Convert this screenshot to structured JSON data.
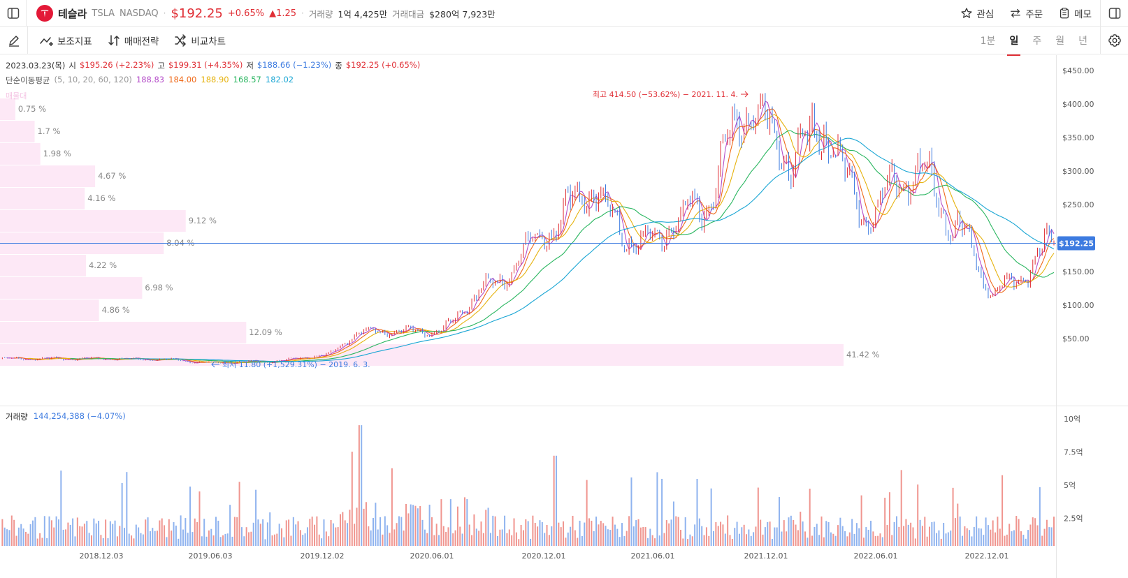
{
  "header": {
    "name": "테슬라",
    "ticker": "TSLA",
    "exchange": "NASDAQ",
    "price": "$192.25",
    "change_pct": "+0.65%",
    "change_abs": "▲1.25",
    "volume_label": "거래량",
    "volume_value": "1억 4,425만",
    "turnover_label": "거래대금",
    "turnover_value": "$280억 7,923만",
    "actions": {
      "watch": "관심",
      "order": "주문",
      "memo": "메모"
    }
  },
  "toolbar": {
    "indicators": "보조지표",
    "strategy": "매매전략",
    "compare": "비교차트",
    "periods": [
      "1분",
      "일",
      "주",
      "월",
      "년"
    ],
    "active_period": "일"
  },
  "legend": {
    "date": "2023.03.23(목)",
    "open_label": "시",
    "open": "$195.26 (+2.23%)",
    "high_label": "고",
    "high": "$199.31 (+4.35%)",
    "low_label": "저",
    "low": "$188.66 (−1.23%)",
    "close_label": "종",
    "close": "$192.25 (+0.65%)",
    "ma_label": "단순이동평균",
    "ma_params": "(5, 10, 20, 60, 120)",
    "ma_values": [
      "188.83",
      "184.00",
      "188.90",
      "168.57",
      "182.02"
    ]
  },
  "volume_legend": {
    "label": "거래량",
    "value": "144,254,388 (−4.07%)"
  },
  "colors": {
    "up": "#e02e35",
    "down": "#3d7be0",
    "ma5": "#b54ec9",
    "ma10": "#ef6a1a",
    "ma20": "#e6b310",
    "ma60": "#2ab660",
    "ma120": "#1aa6d4",
    "profile": "#fde8f6",
    "price_line": "#3d7be0"
  },
  "chart_data": {
    "type": "line",
    "x": [
      "2018-09",
      "2018-12",
      "2019-03",
      "2019-06",
      "2019-09",
      "2019-12",
      "2020-02",
      "2020-06",
      "2020-09",
      "2020-12",
      "2021-02",
      "2021-05",
      "2021-08",
      "2021-11",
      "2022-01",
      "2022-03",
      "2022-05",
      "2022-08",
      "2022-10",
      "2022-12",
      "2023-01",
      "2023-03"
    ],
    "series": [
      {
        "values": [
          20,
          20,
          19,
          14,
          16,
          25,
          60,
          60,
          130,
          210,
          270,
          190,
          240,
          400,
          320,
          360,
          240,
          300,
          220,
          120,
          130,
          192
        ]
      }
    ],
    "ylim": [
      0,
      470
    ],
    "y_ticks": [
      "$450.00",
      "$400.00",
      "$350.00",
      "$300.00",
      "$250.00",
      "$200.00",
      "$150.00",
      "$100.00",
      "$50.00"
    ],
    "x_ticks": [
      "2018.12.03",
      "2019.06.03",
      "2019.12.02",
      "2020.06.01",
      "2020.12.01",
      "2021.06.01",
      "2021.12.01",
      "2022.06.01",
      "2022.12.01"
    ],
    "current_price_label": "$192.25",
    "current_price": 192.25,
    "max_annotation": "최고 414.50 (−53.62%) − 2021. 11. 4.",
    "min_annotation": "최저 11.80 (+1,529.31%) − 2019. 6. 3.",
    "volume_profile_title": "매물대",
    "volume_profile": [
      {
        "label": "0.75 %",
        "value": 0.75
      },
      {
        "label": "1.7 %",
        "value": 1.7
      },
      {
        "label": "1.98 %",
        "value": 1.98
      },
      {
        "label": "4.67 %",
        "value": 4.67
      },
      {
        "label": "4.16 %",
        "value": 4.16
      },
      {
        "label": "9.12 %",
        "value": 9.12
      },
      {
        "label": "8.04 %",
        "value": 8.04
      },
      {
        "label": "4.22 %",
        "value": 4.22
      },
      {
        "label": "6.98 %",
        "value": 6.98
      },
      {
        "label": "4.86 %",
        "value": 4.86
      },
      {
        "label": "12.09 %",
        "value": 12.09
      },
      {
        "label": "41.42 %",
        "value": 41.42
      }
    ],
    "volume_ticks": [
      "10억",
      "7.5억",
      "5억",
      "2.5억"
    ],
    "volume_ylim": [
      0,
      1000000000
    ]
  }
}
